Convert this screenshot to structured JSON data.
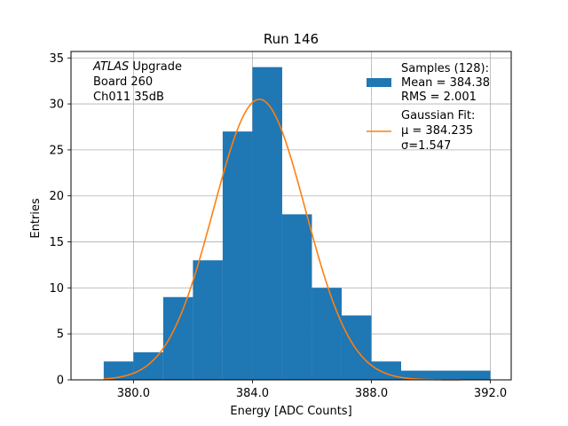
{
  "chart_data": {
    "type": "bar",
    "title": "Run 146",
    "xlabel": "Energy [ADC Counts]",
    "ylabel": "Entries",
    "xlim": [
      377.9,
      392.7
    ],
    "ylim": [
      0,
      35.7
    ],
    "grid": true,
    "xticks": [
      380.0,
      384.0,
      388.0,
      392.0
    ],
    "xtick_labels": [
      "380.0",
      "384.0",
      "388.0",
      "392.0"
    ],
    "yticks": [
      0,
      5,
      10,
      15,
      20,
      25,
      30,
      35
    ],
    "ytick_labels": [
      "0",
      "5",
      "10",
      "15",
      "20",
      "25",
      "30",
      "35"
    ],
    "bins": [
      {
        "x0": 379,
        "x1": 380,
        "count": 2
      },
      {
        "x0": 380,
        "x1": 381,
        "count": 3
      },
      {
        "x0": 381,
        "x1": 382,
        "count": 9
      },
      {
        "x0": 382,
        "x1": 383,
        "count": 13
      },
      {
        "x0": 383,
        "x1": 384,
        "count": 27
      },
      {
        "x0": 384,
        "x1": 385,
        "count": 34
      },
      {
        "x0": 385,
        "x1": 386,
        "count": 18
      },
      {
        "x0": 386,
        "x1": 387,
        "count": 10
      },
      {
        "x0": 387,
        "x1": 388,
        "count": 7
      },
      {
        "x0": 388,
        "x1": 389,
        "count": 2
      },
      {
        "x0": 389,
        "x1": 392,
        "count": 1
      }
    ],
    "histogram_color": "#1f77b4",
    "fit": {
      "mu": 384.235,
      "sigma": 1.547,
      "peak": 30.5,
      "x_range": [
        379,
        391
      ],
      "color": "#ff7f0e"
    },
    "legend": {
      "position": "top-right",
      "entries": [
        {
          "name": "histogram",
          "lines": [
            "Samples (128):",
            " Mean = 384.38",
            " RMS = 2.001"
          ]
        },
        {
          "name": "fit",
          "lines": [
            "Gaussian Fit:",
            " μ = 384.235",
            " σ=1.547"
          ]
        }
      ]
    },
    "annotation": {
      "position": "top-left",
      "lines": [
        {
          "italic": "ATLAS",
          "text": " Upgrade"
        },
        {
          "italic": "",
          "text": " Board 260"
        },
        {
          "italic": "",
          "text": " Ch011 35dB"
        }
      ]
    }
  }
}
